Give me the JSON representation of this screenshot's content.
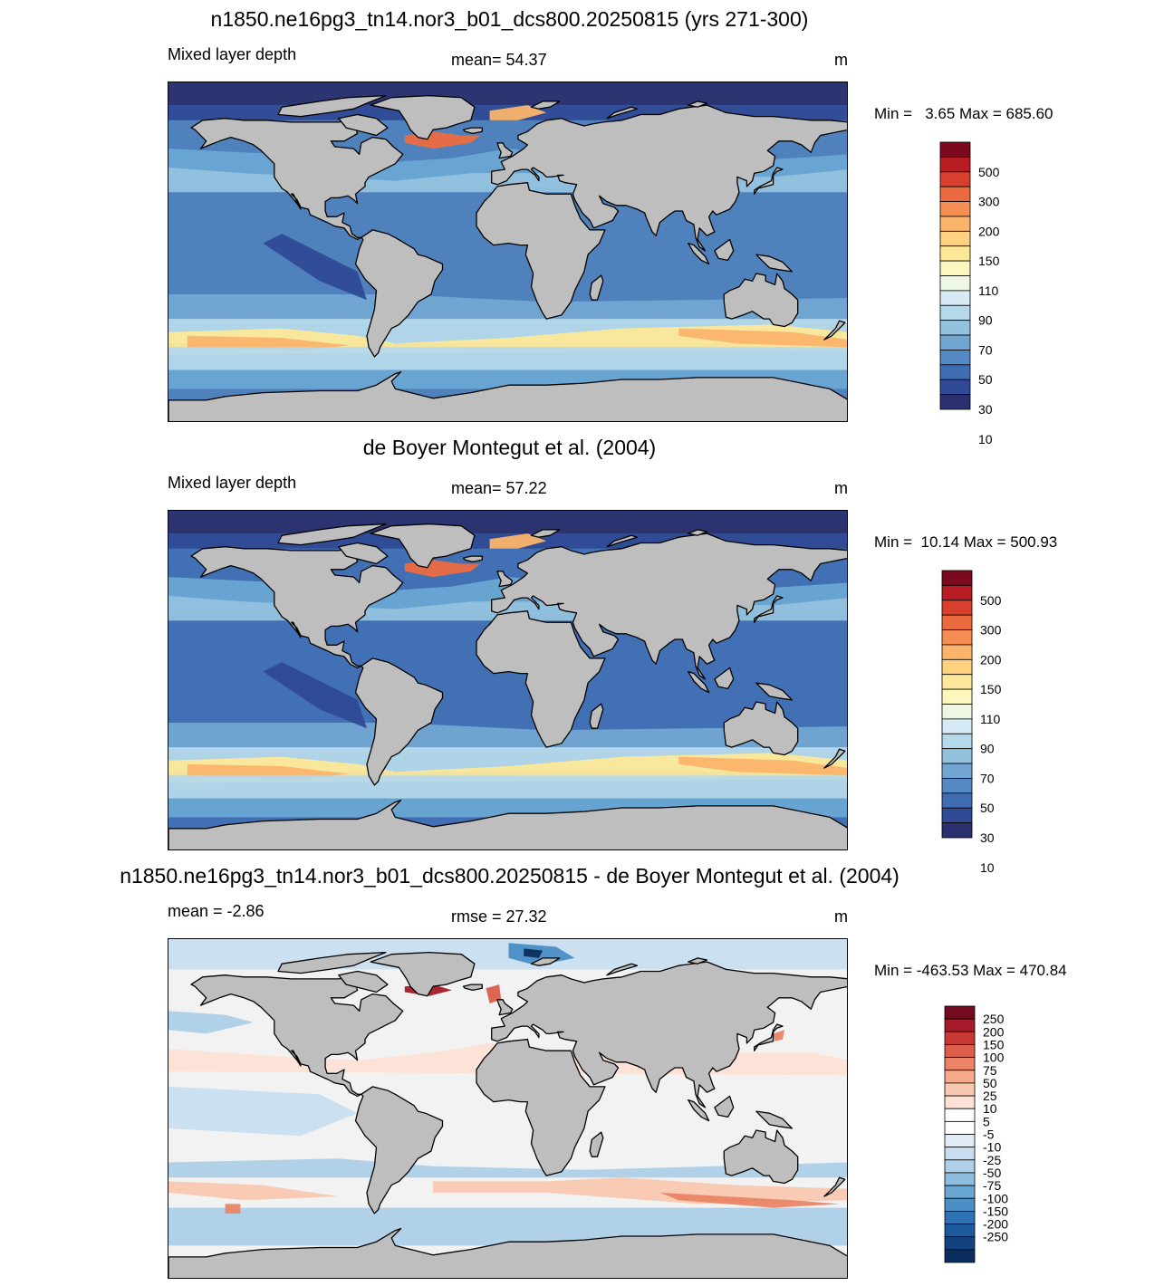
{
  "panels": [
    {
      "title": "n1850.ne16pg3_tn14.nor3_b01_dcs800.20250815 (yrs 271-300)",
      "left_label": "Mixed layer depth",
      "center_label": "mean=  54.37",
      "units": "m",
      "minmax": "Min =   3.65 Max = 685.60",
      "colorbar": {
        "colors": [
          "#2a2f6e",
          "#304a96",
          "#3f6db2",
          "#5589c4",
          "#72a6d2",
          "#93c2df",
          "#b5d8ea",
          "#d6ebf3",
          "#eef6e4",
          "#fcf7bd",
          "#fde89a",
          "#fdd17e",
          "#fbb46a",
          "#f68d52",
          "#ec6a3f",
          "#d8402d",
          "#b71d22",
          "#7c0a1e"
        ],
        "labels": [
          "500",
          "300",
          "200",
          "150",
          "110",
          "90",
          "70",
          "50",
          "30",
          "10"
        ]
      },
      "map": {
        "base": "#4f81bd",
        "bands": "pos"
      }
    },
    {
      "title": "de Boyer Montegut et al. (2004)",
      "left_label": "Mixed layer depth",
      "center_label": "mean=  57.22",
      "units": "m",
      "minmax": "Min =  10.14 Max = 500.93",
      "colorbar": {
        "colors": [
          "#2a2f6e",
          "#304a96",
          "#3f6db2",
          "#5589c4",
          "#72a6d2",
          "#93c2df",
          "#b5d8ea",
          "#d6ebf3",
          "#eef6e4",
          "#fcf7bd",
          "#fde89a",
          "#fdd17e",
          "#fbb46a",
          "#f68d52",
          "#ec6a3f",
          "#d8402d",
          "#b71d22",
          "#7c0a1e"
        ],
        "labels": [
          "500",
          "300",
          "200",
          "150",
          "110",
          "90",
          "70",
          "50",
          "30",
          "10"
        ]
      },
      "map": {
        "base": "#4270b5",
        "bands": "pos"
      }
    },
    {
      "title": "n1850.ne16pg3_tn14.nor3_b01_dcs800.20250815 - de Boyer Montegut et al. (2004)",
      "left_label": "mean =  -2.86",
      "center_label": "rmse =  27.32",
      "units": "m",
      "minmax": "Min = -463.53 Max = 470.84",
      "colorbar": {
        "colors": [
          "#0a2f5e",
          "#12427f",
          "#1d5a9c",
          "#2f72b3",
          "#4a8ec6",
          "#6aa6d3",
          "#8ebcdf",
          "#adcfe8",
          "#c8def0",
          "#e1ecf6",
          "#ffffff",
          "#ffffff",
          "#fde2d5",
          "#f9c8b0",
          "#f4a988",
          "#e98566",
          "#db5e4a",
          "#c73835",
          "#a51a2a",
          "#730a1d"
        ],
        "labels": [
          "250",
          "200",
          "150",
          "100",
          "75",
          "50",
          "25",
          "10",
          "5",
          "-5",
          "-10",
          "-25",
          "-50",
          "-75",
          "-100",
          "-150",
          "-200",
          "-250"
        ]
      },
      "map": {
        "base": "#f2f2f2",
        "bands": "diff"
      }
    }
  ]
}
